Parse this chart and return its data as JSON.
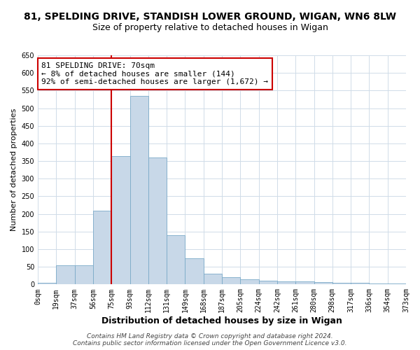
{
  "title": "81, SPELDING DRIVE, STANDISH LOWER GROUND, WIGAN, WN6 8LW",
  "subtitle": "Size of property relative to detached houses in Wigan",
  "xlabel": "Distribution of detached houses by size in Wigan",
  "ylabel": "Number of detached properties",
  "bar_labels": [
    "0sqm",
    "19sqm",
    "37sqm",
    "56sqm",
    "75sqm",
    "93sqm",
    "112sqm",
    "131sqm",
    "149sqm",
    "168sqm",
    "187sqm",
    "205sqm",
    "224sqm",
    "242sqm",
    "261sqm",
    "280sqm",
    "298sqm",
    "317sqm",
    "336sqm",
    "354sqm",
    "373sqm"
  ],
  "bar_values": [
    5,
    55,
    55,
    210,
    365,
    535,
    360,
    140,
    75,
    30,
    20,
    15,
    10,
    9,
    8,
    6,
    5,
    4,
    3,
    3
  ],
  "bar_color": "#c8d8e8",
  "bar_edge_color": "#7aaac8",
  "vline_color": "#cc0000",
  "annotation_line1": "81 SPELDING DRIVE: 70sqm",
  "annotation_line2": "← 8% of detached houses are smaller (144)",
  "annotation_line3": "92% of semi-detached houses are larger (1,672) →",
  "annotation_box_color": "#ffffff",
  "annotation_box_edge": "#cc0000",
  "ylim": [
    0,
    650
  ],
  "yticks": [
    0,
    50,
    100,
    150,
    200,
    250,
    300,
    350,
    400,
    450,
    500,
    550,
    600,
    650
  ],
  "footer": "Contains HM Land Registry data © Crown copyright and database right 2024.\nContains public sector information licensed under the Open Government Licence v3.0.",
  "title_fontsize": 10,
  "subtitle_fontsize": 9,
  "xlabel_fontsize": 9,
  "ylabel_fontsize": 8,
  "tick_fontsize": 7,
  "footer_fontsize": 6.5,
  "annotation_fontsize": 8,
  "background_color": "#ffffff",
  "grid_color": "#d0dce8"
}
